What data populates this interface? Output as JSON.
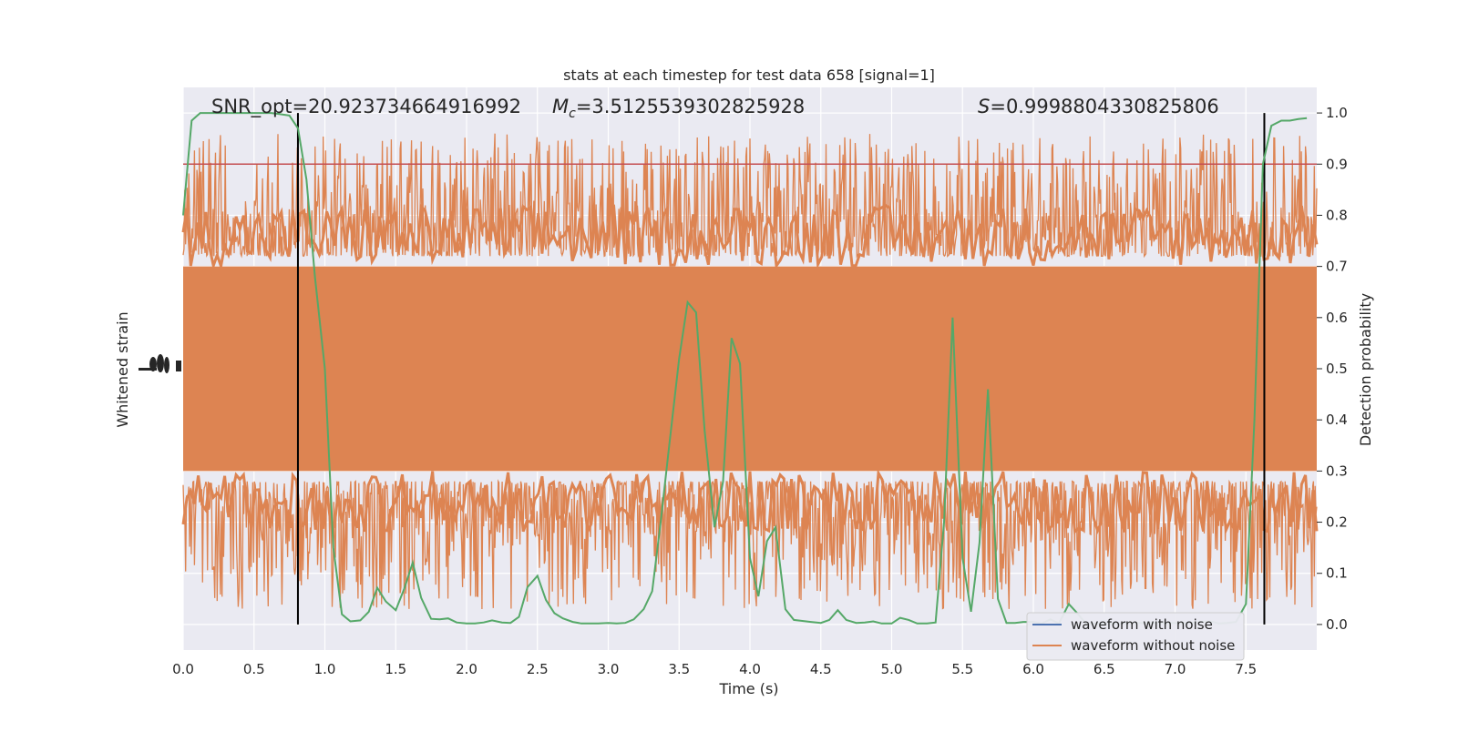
{
  "chart_data": {
    "type": "line",
    "title": "stats at each timestep for test data 658 [signal=1]",
    "xlabel": "Time (s)",
    "ylabel_left": "Whitened strain",
    "ylabel_right": "Detection probability",
    "xlim": [
      0,
      8
    ],
    "ylim_right": [
      -0.05,
      1.05
    ],
    "x_ticks": [
      "0.0",
      "0.5",
      "1.0",
      "1.5",
      "2.0",
      "2.5",
      "3.0",
      "3.5",
      "4.0",
      "4.5",
      "5.0",
      "5.5",
      "6.0",
      "6.5",
      "7.0",
      "7.5"
    ],
    "y_ticks_right": [
      "0.0",
      "0.1",
      "0.2",
      "0.3",
      "0.4",
      "0.5",
      "0.6",
      "0.7",
      "0.8",
      "0.9",
      "1.0"
    ],
    "grid": true,
    "annotations": {
      "snr": "SNR_opt=20.923734664916992",
      "mc_symbol": "M",
      "mc_sub": "c",
      "mc_value": "=3.5125539302825928",
      "s_symbol": "S",
      "s_value": "=0.9998804330825806"
    },
    "threshold": 0.9,
    "vertical_lines": [
      0.81,
      7.63
    ],
    "legend": {
      "placement": "lower-right",
      "entries": [
        "waveform with noise",
        "waveform without noise"
      ]
    },
    "colors": {
      "noise_band": "#dd8452",
      "probability": "#55a868",
      "threshold": "#c44e52",
      "with_noise": "#4c72b0",
      "background": "#eaeaf2"
    },
    "series": [
      {
        "name": "Detection probability",
        "x": [
          0.0,
          0.06,
          0.12,
          0.18,
          0.25,
          0.31,
          0.37,
          0.43,
          0.5,
          0.56,
          0.62,
          0.68,
          0.75,
          0.81,
          0.87,
          0.93,
          1.0,
          1.06,
          1.12,
          1.18,
          1.25,
          1.31,
          1.37,
          1.43,
          1.5,
          1.56,
          1.62,
          1.68,
          1.75,
          1.81,
          1.87,
          1.93,
          2.0,
          2.06,
          2.12,
          2.18,
          2.25,
          2.31,
          2.37,
          2.43,
          2.5,
          2.56,
          2.62,
          2.68,
          2.75,
          2.81,
          2.87,
          2.93,
          3.0,
          3.06,
          3.12,
          3.18,
          3.25,
          3.31,
          3.37,
          3.43,
          3.5,
          3.56,
          3.62,
          3.68,
          3.75,
          3.81,
          3.87,
          3.93,
          4.0,
          4.06,
          4.12,
          4.18,
          4.25,
          4.31,
          4.37,
          4.43,
          4.5,
          4.56,
          4.62,
          4.68,
          4.75,
          4.81,
          4.87,
          4.93,
          5.0,
          5.06,
          5.12,
          5.18,
          5.25,
          5.31,
          5.37,
          5.43,
          5.5,
          5.56,
          5.62,
          5.68,
          5.75,
          5.81,
          5.87,
          5.93,
          6.0,
          6.06,
          6.12,
          6.18,
          6.25,
          6.31,
          6.37,
          6.43,
          6.5,
          6.56,
          6.62,
          6.68,
          6.75,
          6.81,
          6.87,
          6.93,
          7.0,
          7.06,
          7.12,
          7.18,
          7.25,
          7.31,
          7.37,
          7.43,
          7.5,
          7.56,
          7.62,
          7.68,
          7.75,
          7.81,
          7.87,
          7.93
        ],
        "values": [
          0.8,
          0.985,
          1.0,
          1.0,
          1.0,
          1.0,
          1.0,
          1.0,
          1.0,
          1.0,
          1.0,
          0.998,
          0.995,
          0.97,
          0.87,
          0.68,
          0.5,
          0.15,
          0.02,
          0.006,
          0.008,
          0.025,
          0.072,
          0.045,
          0.028,
          0.07,
          0.121,
          0.052,
          0.011,
          0.01,
          0.012,
          0.004,
          0.002,
          0.002,
          0.004,
          0.008,
          0.004,
          0.003,
          0.015,
          0.073,
          0.095,
          0.048,
          0.022,
          0.012,
          0.005,
          0.002,
          0.002,
          0.002,
          0.003,
          0.002,
          0.003,
          0.01,
          0.03,
          0.065,
          0.2,
          0.35,
          0.52,
          0.63,
          0.61,
          0.38,
          0.19,
          0.28,
          0.56,
          0.51,
          0.13,
          0.055,
          0.163,
          0.19,
          0.03,
          0.009,
          0.007,
          0.005,
          0.003,
          0.009,
          0.028,
          0.009,
          0.003,
          0.004,
          0.006,
          0.002,
          0.002,
          0.013,
          0.009,
          0.002,
          0.002,
          0.004,
          0.2,
          0.6,
          0.13,
          0.025,
          0.16,
          0.46,
          0.05,
          0.003,
          0.003,
          0.005,
          0.005,
          0.002,
          0.01,
          0.002,
          0.04,
          0.022,
          0.002,
          0.002,
          0.002,
          0.002,
          0.002,
          0.003,
          0.003,
          0.003,
          0.004,
          0.003,
          0.003,
          0.003,
          0.004,
          0.005,
          0.006,
          0.002,
          0.003,
          0.005,
          0.04,
          0.4,
          0.9,
          0.975,
          0.985,
          0.985,
          0.988,
          0.99
        ]
      },
      {
        "name": "waveform with noise",
        "note_values": []
      },
      {
        "name": "waveform without noise",
        "band_core_range": [
          0.3,
          0.7
        ]
      }
    ]
  }
}
